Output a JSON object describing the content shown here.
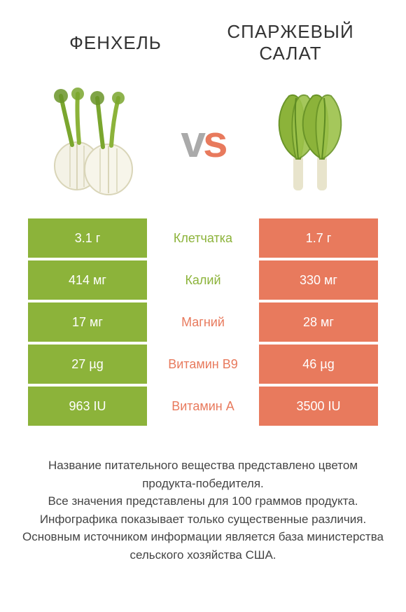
{
  "header": {
    "left_title": "ФЕНХЕЛЬ",
    "right_title": "СПАРЖЕВЫЙ САЛАТ",
    "vs": "vs"
  },
  "colors": {
    "left": "#8cb33a",
    "right": "#e87a5d",
    "text": "#333333"
  },
  "rows": [
    {
      "left": "3.1 г",
      "label": "Клетчатка",
      "right": "1.7 г",
      "winner": "left"
    },
    {
      "left": "414 мг",
      "label": "Калий",
      "right": "330 мг",
      "winner": "left"
    },
    {
      "left": "17 мг",
      "label": "Магний",
      "right": "28 мг",
      "winner": "right"
    },
    {
      "left": "27 µg",
      "label": "Витамин B9",
      "right": "46 µg",
      "winner": "right"
    },
    {
      "left": "963 IU",
      "label": "Витамин A",
      "right": "3500 IU",
      "winner": "right"
    }
  ],
  "footer": {
    "line1": "Название питательного вещества представлено цветом продукта-победителя.",
    "line2": "Все значения представлены для 100 граммов продукта.",
    "line3": "Инфографика показывает только существенные различия.",
    "line4": "Основным источником информации является база министерства сельского хозяйства США."
  }
}
